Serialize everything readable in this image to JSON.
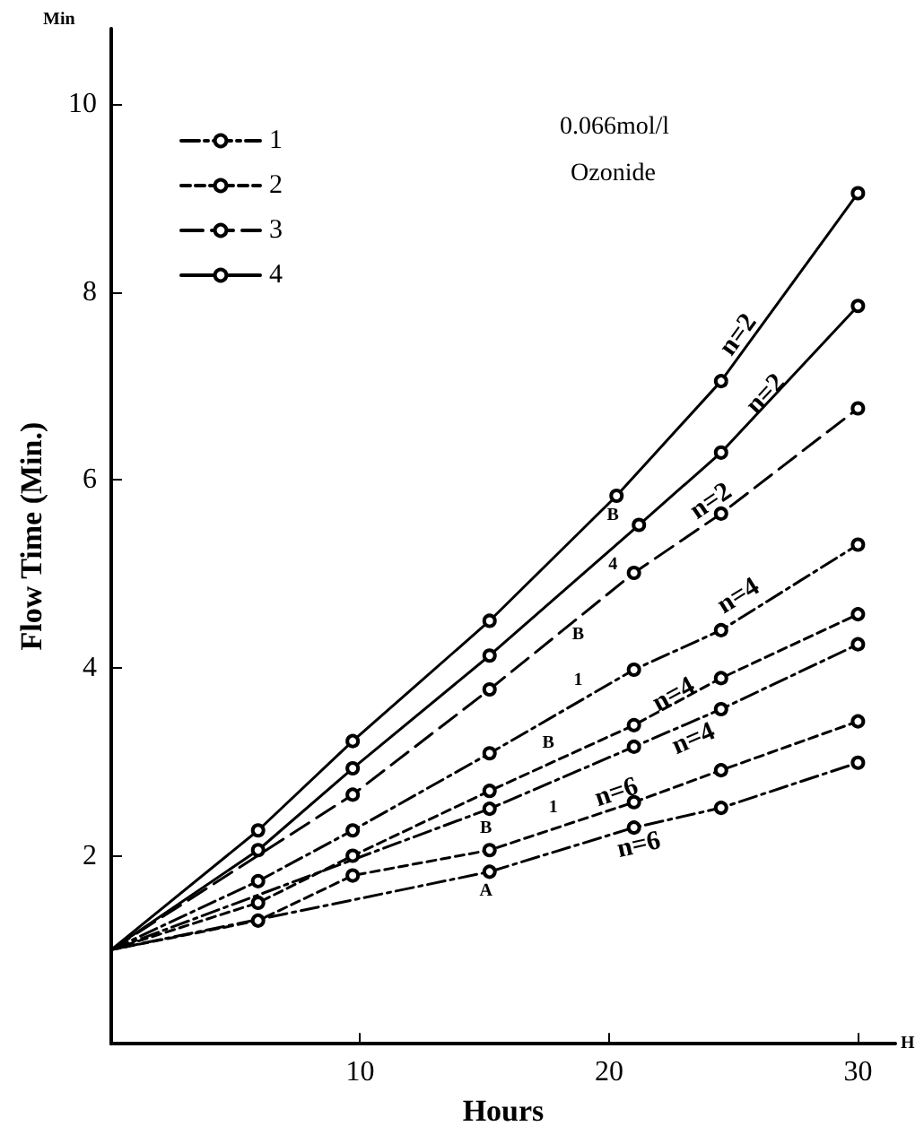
{
  "chart_data": {
    "type": "line",
    "xlabel": "Hours",
    "ylabel": "Flow Time (Min.)",
    "annotations": [
      "0.066mol/l",
      "Ozonide",
      "Min",
      "H",
      {
        "text": "n=2",
        "x": 25.2,
        "y": 7.54
      },
      {
        "text": "n=2",
        "x": 26.3,
        "y": 6.91
      },
      {
        "text": "n=2",
        "x": 24.1,
        "y": 5.77
      },
      {
        "text": "n=4",
        "x": 25.2,
        "y": 4.76
      },
      {
        "text": "n=4",
        "x": 22.6,
        "y": 3.71
      },
      {
        "text": "n=4",
        "x": 23.4,
        "y": 3.24
      },
      {
        "text": "n=6",
        "x": 20.3,
        "y": 2.67
      },
      {
        "text": "n=6",
        "x": 21.2,
        "y": 2.11
      },
      {
        "text": "B",
        "x": 20.3,
        "y": 5.83
      },
      {
        "text": "4",
        "x": 20.3,
        "y": 5.31
      },
      {
        "text": "B",
        "x": 18.9,
        "y": 4.56
      },
      {
        "text": "1",
        "x": 18.9,
        "y": 3.66
      },
      {
        "text": "B",
        "x": 17.7,
        "y": 2.99
      },
      {
        "text": "B",
        "x": 15.2,
        "y": 2.5
      },
      {
        "text": "1",
        "x": 17.9,
        "y": 2.3
      },
      {
        "text": "A",
        "x": 15.2,
        "y": 1.83
      }
    ],
    "series": [
      {
        "name": "1",
        "color": "#000000",
        "line_style": "dashdot",
        "x": [
          0,
          15.2,
          21,
          24.5,
          30
        ],
        "values": [
          1.0,
          2.5,
          3.16,
          3.56,
          4.25
        ]
      },
      {
        "name": "2",
        "color": "#000000",
        "line_style": "dashed",
        "x": [
          0,
          5.9,
          9.7,
          15.2,
          21,
          24.5,
          30
        ],
        "values": [
          1.0,
          1.5,
          2.0,
          2.69,
          3.39,
          3.89,
          4.57
        ]
      },
      {
        "name": "3",
        "color": "#000000",
        "line_style": "longdash",
        "x": [
          0,
          9.7,
          15.2,
          21,
          24.5,
          30
        ],
        "values": [
          1.0,
          2.65,
          3.77,
          5.01,
          5.64,
          6.76
        ]
      },
      {
        "name": "4",
        "color": "#000000",
        "line_style": "solid",
        "x": [
          0,
          5.9,
          9.7,
          15.2,
          20.3,
          24.5,
          30
        ],
        "values": [
          1.0,
          2.27,
          3.22,
          4.5,
          5.83,
          7.05,
          9.05
        ]
      },
      {
        "color": "#000000",
        "line_style": "solid",
        "x": [
          0,
          5.9,
          9.7,
          15.2,
          21.2,
          24.5,
          30
        ],
        "values": [
          1.0,
          2.06,
          2.93,
          4.13,
          5.52,
          6.29,
          7.85
        ]
      },
      {
        "color": "#000000",
        "line_style": "dashdot",
        "x": [
          0,
          5.9,
          9.7,
          15.2,
          21,
          24.5,
          30
        ],
        "values": [
          1.0,
          1.73,
          2.27,
          3.09,
          3.98,
          4.4,
          5.31
        ]
      },
      {
        "color": "#000000",
        "line_style": "dashed",
        "x": [
          0,
          5.9,
          9.7,
          15.2,
          21,
          24.5,
          30
        ],
        "values": [
          1.0,
          1.31,
          1.79,
          2.06,
          2.57,
          2.91,
          3.43
        ]
      },
      {
        "color": "#000000",
        "line_style": "dashdot",
        "x": [
          0,
          15.2,
          21,
          24.5,
          30
        ],
        "values": [
          1.0,
          1.83,
          2.3,
          2.51,
          2.99
        ]
      }
    ],
    "xlim": [
      0,
      31.5
    ],
    "xticks": [
      10,
      20,
      30
    ],
    "ylim": [
      0,
      10.8
    ],
    "yticks": [
      2,
      4,
      6,
      8,
      10
    ],
    "grid": false,
    "legend": "top left",
    "marker": "circle"
  }
}
